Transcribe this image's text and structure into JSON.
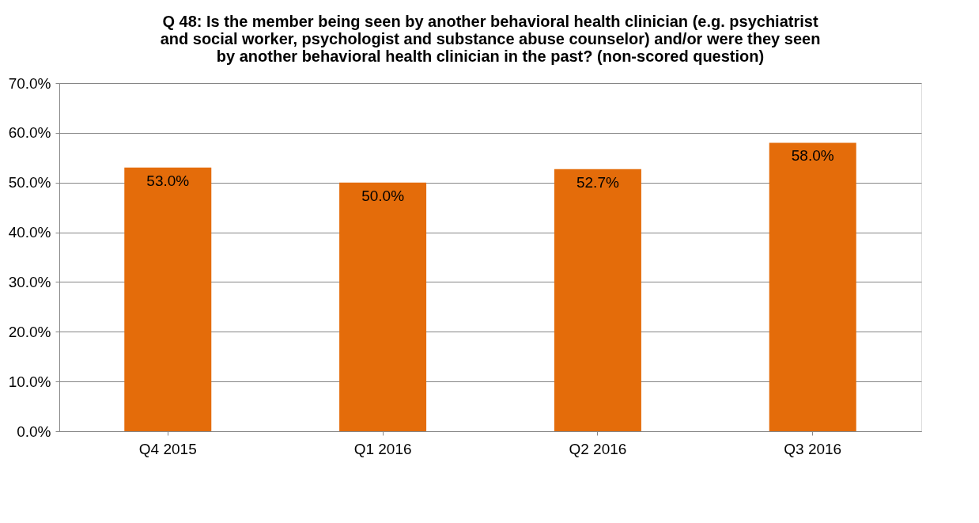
{
  "chart_data": {
    "type": "bar",
    "title": [
      "Q 48: Is the member  being seen by another behavioral health clinician (e.g. psychiatrist",
      "and social worker, psychologist and substance abuse counselor) and/or were they seen",
      "by another behavioral health clinician in the past?  (non-scored question)"
    ],
    "categories": [
      "Q4 2015",
      "Q1 2016",
      "Q2 2016",
      "Q3 2016"
    ],
    "values": [
      53.0,
      50.0,
      52.7,
      58.0
    ],
    "value_labels": [
      "53.0%",
      "50.0%",
      "52.7%",
      "58.0%"
    ],
    "color": "#e46c0a",
    "ylim": [
      0,
      70
    ],
    "yticks": [
      {
        "value": 0,
        "label": "0.0%"
      },
      {
        "value": 10,
        "label": "10.0%"
      },
      {
        "value": 20,
        "label": "20.0%"
      },
      {
        "value": 30,
        "label": "30.0%"
      },
      {
        "value": 40,
        "label": "40.0%"
      },
      {
        "value": 50,
        "label": "50.0%"
      },
      {
        "value": 60,
        "label": "60.0%"
      },
      {
        "value": 70,
        "label": "70.0%"
      }
    ],
    "grid": "y"
  }
}
